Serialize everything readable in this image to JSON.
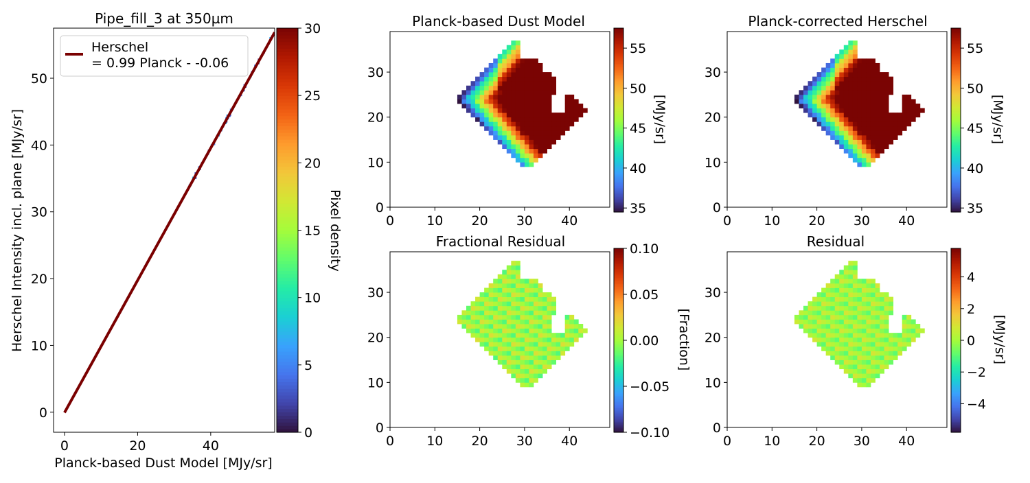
{
  "colorscale": [
    "#30123b",
    "#4145ab",
    "#4675ed",
    "#39a2fc",
    "#1bcfd4",
    "#24eca6",
    "#61fc6c",
    "#a4fc3b",
    "#d1e834",
    "#f3c63a",
    "#fe9b2d",
    "#f36315",
    "#d93806",
    "#b11901",
    "#7a0403"
  ],
  "chart_data": [
    {
      "type": "scatter",
      "title": "Pipe_fill_3 at 350µm",
      "xlabel": "Planck-based Dust Model [MJy/sr]",
      "ylabel": "Herschel Intensity incl. plane [MJy/sr]",
      "xlim": [
        -3,
        57.5
      ],
      "ylim": [
        -3,
        57.5
      ],
      "xticks": [
        0,
        20,
        40
      ],
      "yticks": [
        0,
        10,
        20,
        30,
        40,
        50
      ],
      "grid": false,
      "fit_line": {
        "slope": 0.99,
        "intercept": -0.06,
        "x_range": [
          0,
          57.5
        ],
        "color": "#7a0000"
      },
      "points_x_range": [
        34,
        57
      ],
      "legend": {
        "position": "top-left",
        "line1": "Herschel",
        "line2": "= 0.99 Planck - -0.06"
      },
      "colorbar": {
        "label": "Pixel density",
        "range": [
          0,
          30
        ],
        "ticks": [
          0,
          5,
          10,
          15,
          20,
          25,
          30
        ]
      }
    },
    {
      "type": "heatmap",
      "id": "p1",
      "title": "Planck-based Dust Model",
      "xlim": [
        0,
        49
      ],
      "ylim": [
        0,
        39
      ],
      "xticks": [
        0,
        10,
        20,
        30,
        40
      ],
      "yticks": [
        0,
        10,
        20,
        30
      ],
      "colorbar": {
        "label": "[MJy/sr]",
        "range": [
          34.5,
          57.5
        ],
        "ticks": [
          35,
          40,
          45,
          50,
          55
        ]
      }
    },
    {
      "type": "heatmap",
      "id": "p2",
      "title": "Planck-corrected Herschel",
      "xlim": [
        0,
        49
      ],
      "ylim": [
        0,
        39
      ],
      "xticks": [
        0,
        10,
        20,
        30,
        40
      ],
      "yticks": [
        0,
        10,
        20,
        30
      ],
      "colorbar": {
        "label": "[MJy/sr]",
        "range": [
          34.5,
          57.5
        ],
        "ticks": [
          35,
          40,
          45,
          50,
          55
        ]
      }
    },
    {
      "type": "heatmap",
      "id": "p3",
      "title": "Fractional Residual",
      "xlim": [
        0,
        49
      ],
      "ylim": [
        0,
        39
      ],
      "xticks": [
        0,
        10,
        20,
        30,
        40
      ],
      "yticks": [
        0,
        10,
        20,
        30
      ],
      "colorbar": {
        "label": "[Fraction]",
        "range": [
          -0.1,
          0.1
        ],
        "ticks": [
          -0.1,
          -0.05,
          0.0,
          0.05,
          0.1
        ],
        "tick_labels": [
          "−0.10",
          "−0.05",
          "0.00",
          "0.05",
          "0.10"
        ]
      }
    },
    {
      "type": "heatmap",
      "id": "p4",
      "title": "Residual",
      "xlim": [
        0,
        49
      ],
      "ylim": [
        0,
        39
      ],
      "xticks": [
        0,
        10,
        20,
        30,
        40
      ],
      "yticks": [
        0,
        10,
        20,
        30
      ],
      "colorbar": {
        "label": "[MJy/sr]",
        "range": [
          -5.8,
          5.8
        ],
        "ticks": [
          -4,
          -2,
          0,
          2,
          4
        ],
        "tick_labels": [
          "−4",
          "−2",
          "0",
          "2",
          "4"
        ]
      }
    }
  ]
}
